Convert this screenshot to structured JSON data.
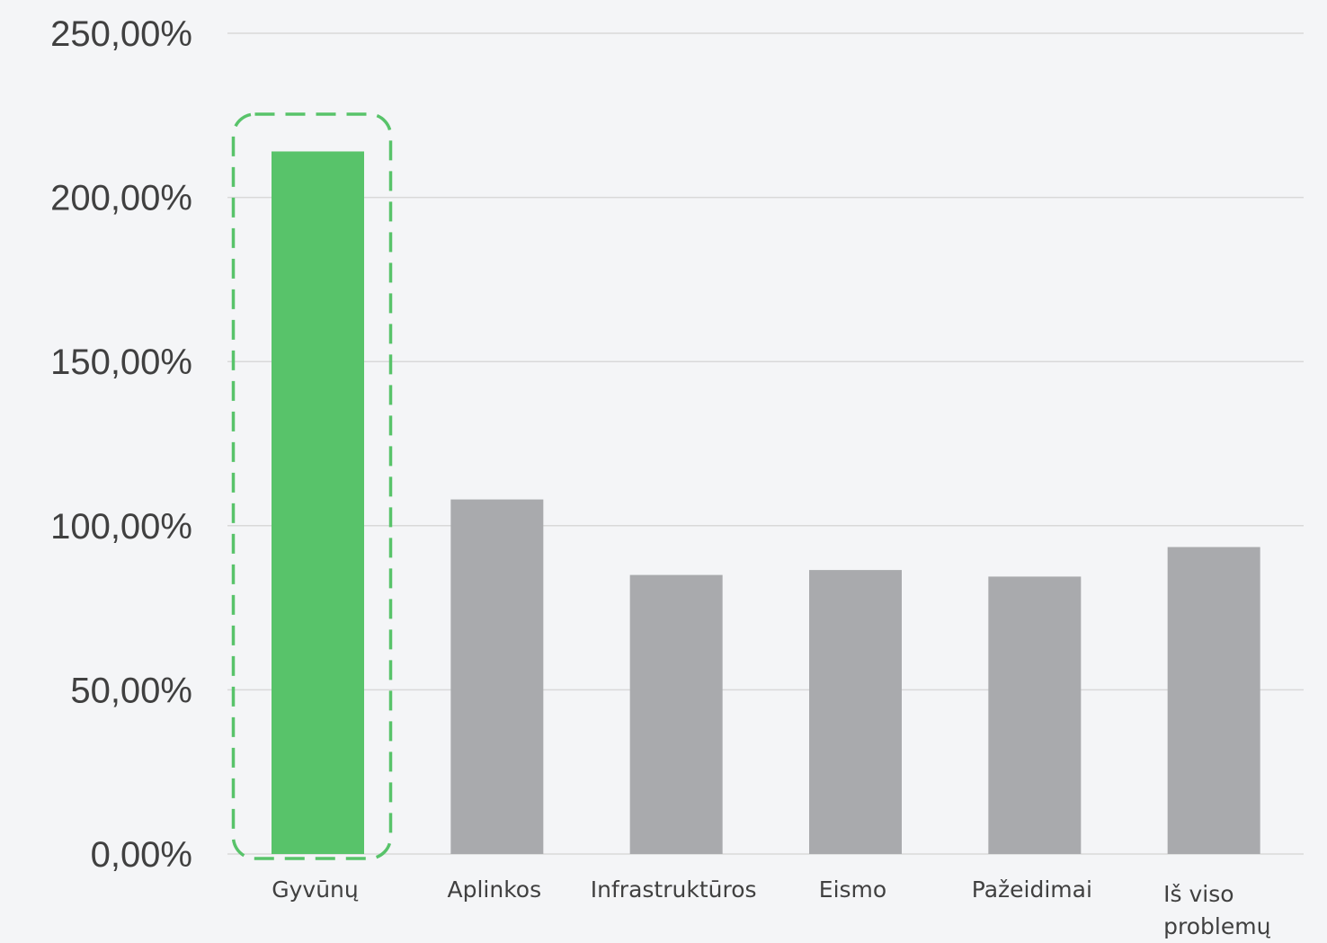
{
  "chart_data": {
    "type": "bar",
    "categories": [
      "Gyvūnų",
      "Aplinkos",
      "Infrastruktūros",
      "Eismo",
      "Pažeidimai",
      "Iš viso problemų"
    ],
    "values": [
      214,
      108,
      85,
      86.5,
      84.5,
      93.5
    ],
    "unit": "%",
    "ylim": [
      0,
      250
    ],
    "yticks": [
      {
        "value": 0,
        "label": "0,00%"
      },
      {
        "value": 50,
        "label": "50,00%"
      },
      {
        "value": 100,
        "label": "100,00%"
      },
      {
        "value": 150,
        "label": "150,00%"
      },
      {
        "value": 200,
        "label": "200,00%"
      },
      {
        "value": 250,
        "label": "250,00%"
      }
    ],
    "grid": true,
    "legend": "none",
    "highlighted_category": "Gyvūnų",
    "colors": {
      "highlight": "#58c36a",
      "default": "#a9aaad",
      "highlight_outline": "#58c36a",
      "gridline": "#d9d9d9",
      "background": "#f4f5f7"
    }
  }
}
